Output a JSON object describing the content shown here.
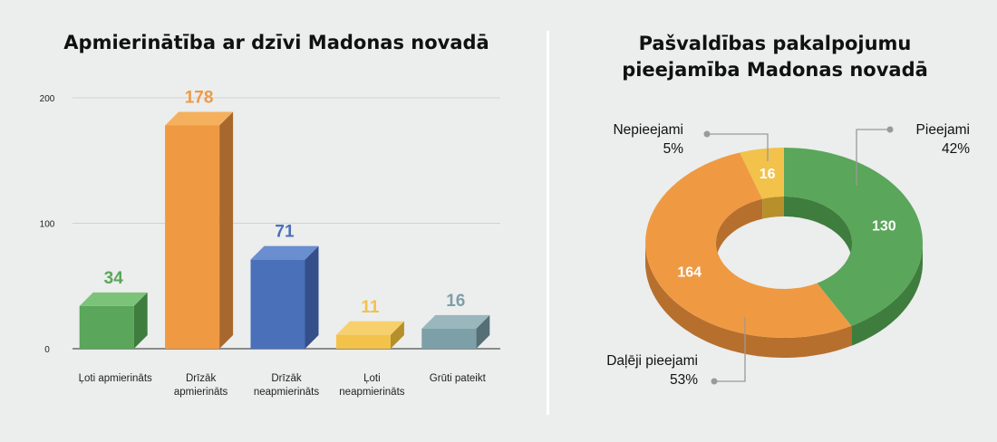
{
  "chart_data": [
    {
      "type": "bar",
      "title": "Apmierinātība ar dzīvi Madonas novadā",
      "categories": [
        [
          "Ļoti apmierināts"
        ],
        [
          "Drīzāk",
          "apmierināts"
        ],
        [
          "Drīzāk",
          "neapmierināts"
        ],
        [
          "Ļoti",
          "neapmierināts"
        ],
        [
          "Grūti pateikt"
        ]
      ],
      "values": [
        34,
        178,
        71,
        11,
        16
      ],
      "yticks": [
        "0",
        "100",
        "200"
      ],
      "ylim": [
        0,
        200
      ],
      "grid": true,
      "colors": {
        "front": [
          "#5aa65a",
          "#ef9a43",
          "#4970b8",
          "#f2c24a",
          "#7d9fa8"
        ],
        "top": [
          "#7cc37a",
          "#f4b05d",
          "#6a8ed0",
          "#f6d06c",
          "#9ab7be"
        ],
        "side": [
          "#3e7d3e",
          "#a8672c",
          "#354f8a",
          "#b58f2a",
          "#566f76"
        ],
        "label": [
          "#5aa65a",
          "#ef9a43",
          "#4970b8",
          "#f2c24a",
          "#7d9fa8"
        ]
      }
    },
    {
      "type": "pie",
      "title": "Pašvaldības pakalpojumu pieejamība Madonas novadā",
      "slices": [
        {
          "name": "Pieejami",
          "value": 130,
          "percent": "42%",
          "color": "#5aa65a",
          "depth_color": "#3e7d3e"
        },
        {
          "name": "Daļēji pieejami",
          "value": 164,
          "percent": "53%",
          "color": "#ef9a43",
          "depth_color": "#b66f2d"
        },
        {
          "name": "Nepieejami",
          "value": 16,
          "percent": "5%",
          "color": "#f2c24a",
          "depth_color": "#b78f2b"
        }
      ]
    }
  ],
  "ui": {
    "bar_title": "Apmierinātība ar dzīvi Madonas novadā",
    "donut_title_line1": "Pašvaldības pakalpojumu",
    "donut_title_line2": "pieejamība Madonas novadā"
  }
}
